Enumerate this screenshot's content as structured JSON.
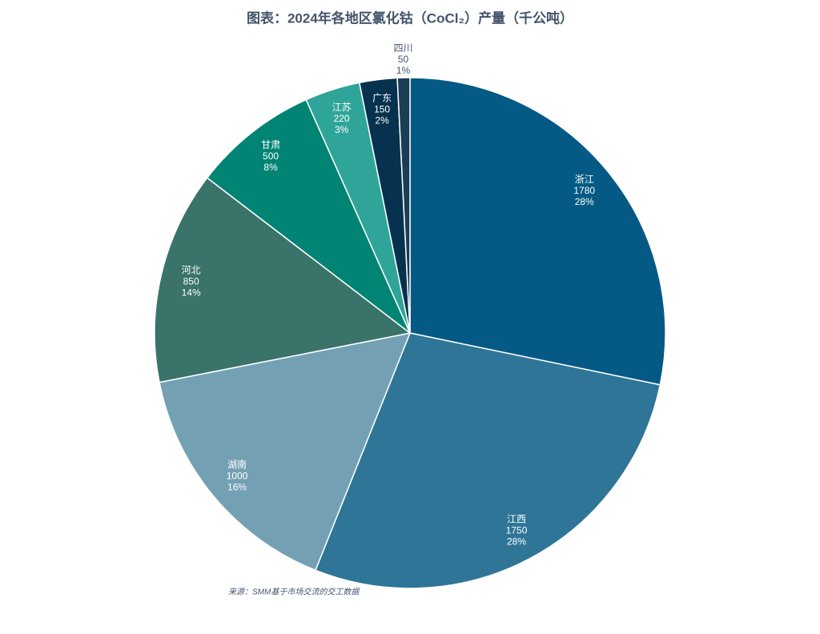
{
  "chart_data": {
    "type": "pie",
    "title": "图表：2024年各地区氯化钴（CoCl₂）产量（千公吨）",
    "categories": [
      "浙江",
      "江西",
      "湖南",
      "河北",
      "甘肃",
      "江苏",
      "广东",
      "四川"
    ],
    "values": [
      1780,
      1750,
      1000,
      850,
      500,
      220,
      150,
      50
    ],
    "percent_labels": [
      "28%",
      "28%",
      "16%",
      "14%",
      "8%",
      "3%",
      "2%",
      "1%"
    ],
    "colors": [
      "#045a84",
      "#2e7597",
      "#74a0b4",
      "#3a736a",
      "#028474",
      "#2fa59a",
      "#06324f",
      "#1b3d55"
    ],
    "source": "来源：SMM基于市场交流的交工数据"
  }
}
